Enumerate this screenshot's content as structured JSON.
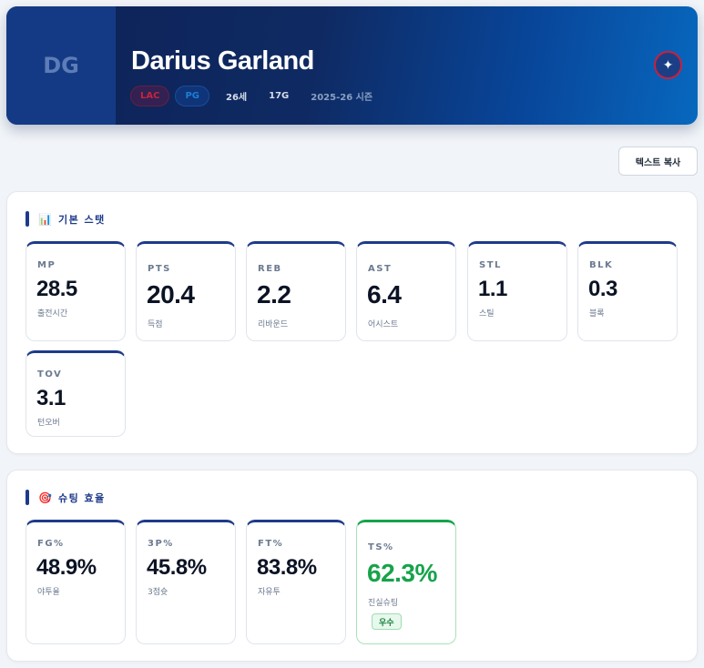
{
  "player": {
    "initials": "DG",
    "name": "Darius Garland",
    "team": "LAC",
    "position": "PG",
    "age": "26세",
    "games": "17G",
    "season": "2025-26 시즌",
    "logo_icon": "team-logo-icon"
  },
  "toolbar": {
    "copy_label": "텍스트 복사"
  },
  "basic": {
    "title": "기본 스탯",
    "icon": "📊",
    "stats": [
      {
        "label": "MP",
        "value": "28.5",
        "sub": "출전시간"
      },
      {
        "label": "PTS",
        "value": "20.4",
        "sub": "득점"
      },
      {
        "label": "REB",
        "value": "2.2",
        "sub": "리바운드"
      },
      {
        "label": "AST",
        "value": "6.4",
        "sub": "어시스트"
      },
      {
        "label": "STL",
        "value": "1.1",
        "sub": "스틸"
      },
      {
        "label": "BLK",
        "value": "0.3",
        "sub": "블록"
      },
      {
        "label": "TOV",
        "value": "3.1",
        "sub": "턴오버"
      }
    ]
  },
  "shooting": {
    "title": "슈팅 효율",
    "icon": "🎯",
    "stats": [
      {
        "label": "FG%",
        "value": "48.9%",
        "sub": "야투율"
      },
      {
        "label": "3P%",
        "value": "45.8%",
        "sub": "3점슛"
      },
      {
        "label": "FT%",
        "value": "83.8%",
        "sub": "자유투"
      },
      {
        "label": "TS%",
        "value": "62.3%",
        "sub": "진실슈팅",
        "badge": "우수"
      }
    ]
  },
  "colors": {
    "accent": "#1e3a8a",
    "good": "#16a34a",
    "team": "#c5243d"
  }
}
